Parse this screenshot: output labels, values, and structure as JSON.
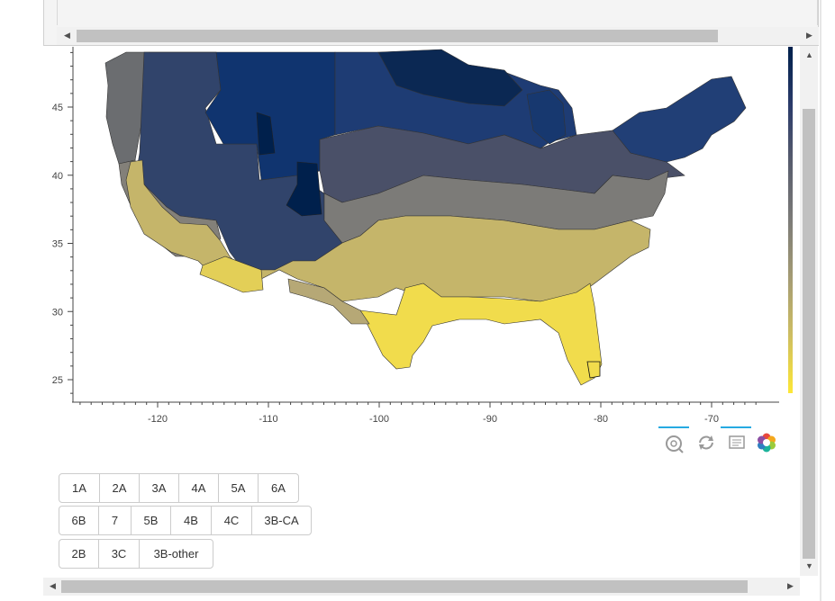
{
  "chart_data": {
    "type": "choropleth map",
    "x_ticks": [
      "-120",
      "-110",
      "-100",
      "-90",
      "-80",
      "-70"
    ],
    "y_ticks": [
      "45",
      "40",
      "35",
      "30",
      "25"
    ],
    "x_range": [
      -127,
      -66
    ],
    "y_range": [
      24,
      50
    ],
    "colormap": "cividis",
    "colorbar_colors": [
      "#00204c",
      "#2b3b6a",
      "#575c6d",
      "#7c7b78",
      "#a59c74",
      "#cdbd62",
      "#fde737"
    ],
    "zones": [
      {
        "color": "#00204c"
      },
      {
        "color": "#10346f"
      },
      {
        "color": "#31446b"
      },
      {
        "color": "#4a5068"
      },
      {
        "color": "#7c7b78"
      },
      {
        "color": "#a59c74"
      },
      {
        "color": "#c5b56a"
      },
      {
        "color": "#e3cf57"
      },
      {
        "color": "#f1dc4c"
      },
      {
        "color": "#6b6d70"
      },
      {
        "color": "#838079"
      }
    ]
  },
  "toolbar": {
    "tools": [
      {
        "name": "wheel-zoom-tool",
        "active": true
      },
      {
        "name": "reset-tool",
        "active": false
      },
      {
        "name": "hover-tool",
        "active": true
      },
      {
        "name": "bokeh-logo",
        "active": false
      }
    ]
  },
  "zone_buttons": {
    "row1": [
      "1A",
      "2A",
      "3A",
      "4A",
      "5A",
      "6A"
    ],
    "row2": [
      "6B",
      "7",
      "5B",
      "4B",
      "4C",
      "3B-CA"
    ],
    "row3": [
      "2B",
      "3C",
      "3B-other"
    ]
  }
}
